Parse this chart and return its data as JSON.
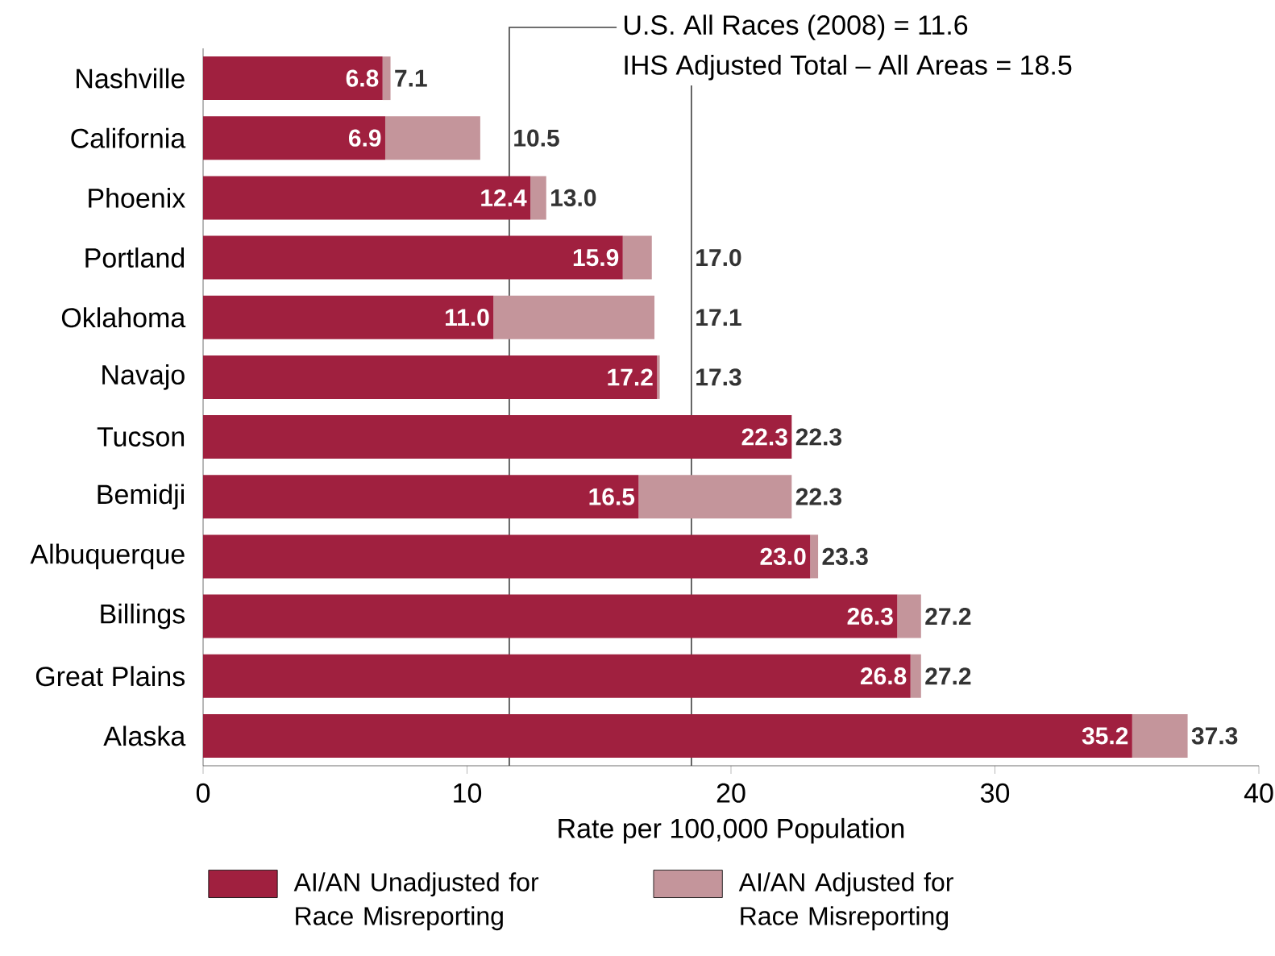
{
  "chart_data": {
    "type": "bar",
    "orientation": "horizontal",
    "stacked": true,
    "xlabel": "Rate per 100,000 Population",
    "categories": [
      "Nashville",
      "California",
      "Phoenix",
      "Portland",
      "Oklahoma",
      "Navajo",
      "Tucson",
      "Bemidji",
      "Albuquerque",
      "Billings",
      "Great Plains",
      "Alaska"
    ],
    "series": [
      {
        "name": "AI/AN Unadjusted for Race Misreporting",
        "color": "#a0203f",
        "values": [
          6.8,
          6.9,
          12.4,
          15.9,
          11.0,
          17.2,
          22.3,
          16.5,
          23.0,
          26.3,
          26.8,
          35.2
        ],
        "value_labels": [
          "6.8",
          "6.9",
          "12.4",
          "15.9",
          "11.0",
          "17.2",
          "22.3",
          "16.5",
          "23.0",
          "26.3",
          "26.8",
          "35.2"
        ]
      },
      {
        "name": "AI/AN Adjusted for Race Misreporting",
        "color": "#c4959b",
        "values": [
          0.3,
          3.6,
          0.6,
          1.1,
          6.1,
          0.1,
          0.0,
          5.8,
          0.3,
          0.9,
          0.4,
          2.1
        ]
      }
    ],
    "totals": [
      "7.1",
      "10.5",
      "13.0",
      "17.0",
      "17.1",
      "17.3",
      "22.3",
      "22.3",
      "23.3",
      "27.2",
      "27.2",
      "37.3"
    ],
    "xlim": [
      0,
      40
    ],
    "xticks": [
      0,
      10,
      20,
      30,
      40
    ],
    "ref_lines": [
      {
        "axis": "x",
        "value": 11.6,
        "label": "U.S. All Races (2008) = 11.6"
      },
      {
        "axis": "x",
        "value": 18.5,
        "label": "IHS Adjusted Total – All Areas = 18.5"
      }
    ],
    "legend": "bottom",
    "grid": false
  }
}
